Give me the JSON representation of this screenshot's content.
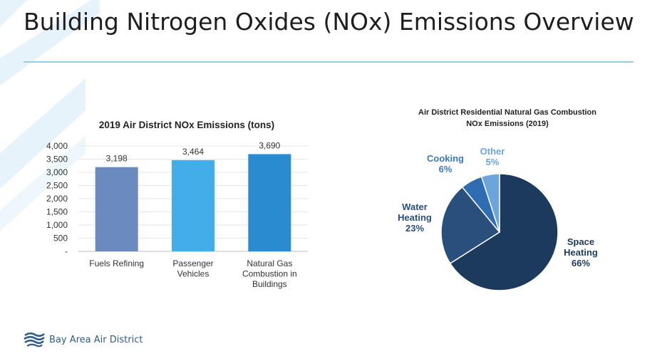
{
  "slide": {
    "title": "Building Nitrogen Oxides (NOx) Emissions Overview",
    "logo_text": "Bay Area Air District"
  },
  "chart_data": [
    {
      "type": "bar",
      "title": "2019 Air District NOx Emissions (tons)",
      "categories": [
        [
          "Fuels Refining"
        ],
        [
          "Passenger",
          "Vehicles"
        ],
        [
          "Natural Gas",
          "Combustion in",
          "Buildings"
        ]
      ],
      "values": [
        3198,
        3464,
        3690
      ],
      "value_labels": [
        "3,198",
        "3,464",
        "3,690"
      ],
      "colors": [
        "#6b8bbf",
        "#41aee9",
        "#2a8bd0"
      ],
      "yticks": [
        0,
        500,
        1000,
        1500,
        2000,
        2500,
        3000,
        3500,
        4000
      ],
      "ytick_labels": [
        "-",
        "500",
        "1,000",
        "1,500",
        "2,000",
        "2,500",
        "3,000",
        "3,500",
        "4,000"
      ],
      "ylim": [
        0,
        4000
      ],
      "grid": true
    },
    {
      "type": "pie",
      "title": [
        "Air District Residential Natural Gas Combustion",
        "NOx Emissions (2019)"
      ],
      "slices": [
        {
          "label": [
            "Space",
            "Heating"
          ],
          "pct_label": "66%",
          "value": 66,
          "color": "#1b3a5c",
          "label_color": "#1f3a5a"
        },
        {
          "label": [
            "Water",
            "Heating"
          ],
          "pct_label": "23%",
          "value": 23,
          "color": "#2a4f7c",
          "label_color": "#2a4f7c"
        },
        {
          "label": [
            "Cooking"
          ],
          "pct_label": "6%",
          "value": 6,
          "color": "#2f6db2",
          "label_color": "#3a78bf"
        },
        {
          "label": [
            "Other"
          ],
          "pct_label": "5%",
          "value": 5,
          "color": "#6aa5db",
          "label_color": "#6aa5db"
        }
      ]
    }
  ]
}
